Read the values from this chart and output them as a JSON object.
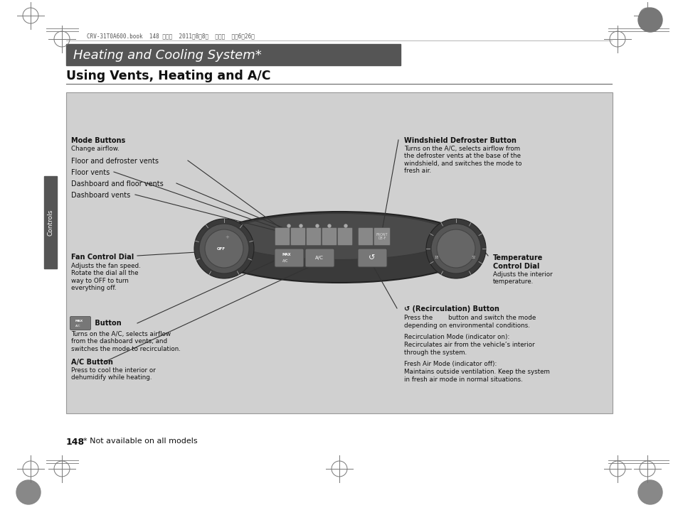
{
  "page_bg": "#ffffff",
  "header_bar_color": "#555555",
  "header_text": "Heating and Cooling System*",
  "header_text_color": "#ffffff",
  "section_title": "Using Vents, Heating and A/C",
  "diagram_bg": "#d0d0d0",
  "top_meta": "CRV-31T0A600.book  148 ページ  2011年8月8日  月曜日  午後6時26分",
  "page_number": "148",
  "footnote": "* Not available on all models",
  "sidebar_label": "Controls",
  "mode_buttons_title": "Mode Buttons",
  "mode_buttons_sub": "Change airflow.",
  "floor_defroster": "Floor and defroster vents",
  "floor_vents": "Floor vents",
  "dash_floor": "Dashboard and floor vents",
  "dash_vents": "Dashboard vents",
  "fan_control_title": "Fan Control Dial",
  "fan_control_sub": "Adjusts the fan speed.\nRotate the dial all the\nway to OFF to turn\neverything off.",
  "max_button_title": "Button",
  "max_button_sub": "Turns on the A/C, selects airflow\nfrom the dashboard vents, and\nswitches the mode to recirculation.",
  "ac_button_title": "A/C Button",
  "ac_button_sub": "Press to cool the interior or\ndehumidify while heating.",
  "windshield_title": "Windshield Defroster Button",
  "windshield_sub": "Turns on the A/C, selects airflow from\nthe defroster vents at the base of the\nwindshield, and switches the mode to\nfresh air.",
  "temp_title": "Temperature\nControl Dial",
  "temp_sub": "Adjusts the interior\ntemperature.",
  "recirc_title": "(Recirculation) Button",
  "recirc_line1": "Press the        button and switch the mode",
  "recirc_line2": "depending on environmental conditions.",
  "recirc_line3": "Recirculation Mode (indicator on):",
  "recirc_line4": "Recirculates air from the vehicle’s interior",
  "recirc_line5": "through the system.",
  "recirc_line6": "Fresh Air Mode (indicator off):",
  "recirc_line7": "Maintains outside ventilation. Keep the system",
  "recirc_line8": "in fresh air mode in normal situations."
}
